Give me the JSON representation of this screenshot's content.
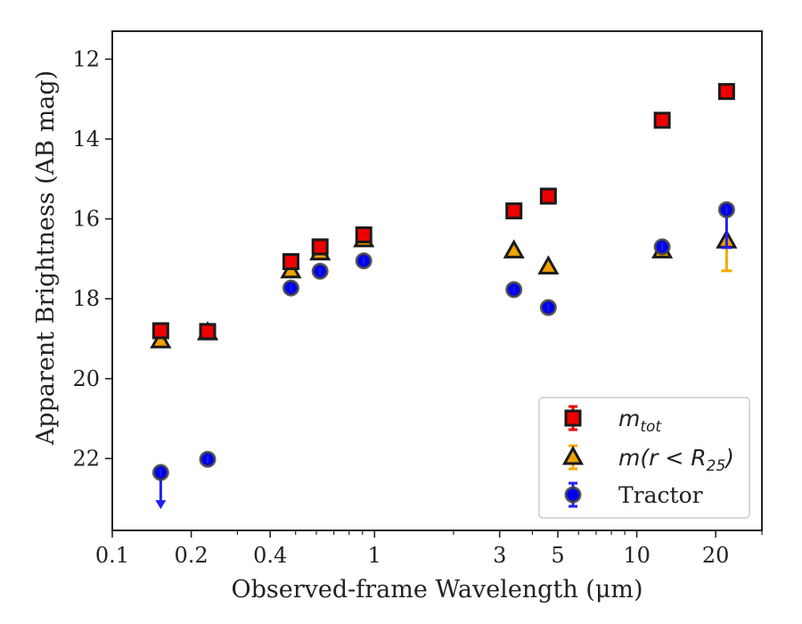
{
  "chart_data": {
    "type": "scatter",
    "xlabel": "Observed-frame Wavelength (μm)",
    "ylabel": "Apparent Brightness (AB mag)",
    "x_scale": "log",
    "xlim": [
      0.1,
      30
    ],
    "ylim": [
      23.8,
      11.3
    ],
    "y_inverted": true,
    "x_ticks": [
      {
        "value": 0.1,
        "label": "0.1"
      },
      {
        "value": 0.2,
        "label": "0.2"
      },
      {
        "value": 0.4,
        "label": "0.4"
      },
      {
        "value": 1,
        "label": "1"
      },
      {
        "value": 3,
        "label": "3"
      },
      {
        "value": 5,
        "label": "5"
      },
      {
        "value": 10,
        "label": "10"
      },
      {
        "value": 20,
        "label": "20"
      }
    ],
    "x_minor_ticks": [
      0.3,
      0.5,
      0.6,
      0.7,
      0.8,
      0.9,
      2,
      4,
      6,
      7,
      8,
      9,
      30
    ],
    "y_ticks": [
      {
        "value": 12,
        "label": "12"
      },
      {
        "value": 14,
        "label": "14"
      },
      {
        "value": 16,
        "label": "16"
      },
      {
        "value": 18,
        "label": "18"
      },
      {
        "value": 20,
        "label": "20"
      },
      {
        "value": 22,
        "label": "22"
      }
    ],
    "grid": false,
    "legend_position": "lower-right",
    "series": [
      {
        "name": "m_tot",
        "legend_label": {
          "italic": "m",
          "subscript": "tot"
        },
        "marker": "square",
        "face_color": "#ee0000",
        "edge_color": "#1a1a1a",
        "error_color": "#ee0000",
        "points": [
          {
            "x": 0.153,
            "y": 18.8
          },
          {
            "x": 0.231,
            "y": 18.82
          },
          {
            "x": 0.48,
            "y": 17.07
          },
          {
            "x": 0.62,
            "y": 16.7
          },
          {
            "x": 0.91,
            "y": 16.4
          },
          {
            "x": 3.4,
            "y": 15.8
          },
          {
            "x": 4.6,
            "y": 15.43
          },
          {
            "x": 12.5,
            "y": 13.53
          },
          {
            "x": 22.0,
            "y": 12.81
          }
        ]
      },
      {
        "name": "m(r < R25)",
        "legend_label": {
          "italic": "m",
          "open": "(",
          "italic2": "r",
          "relation": " < ",
          "italic3": "R",
          "subscript": "25",
          "close": ")"
        },
        "marker": "triangle",
        "face_color": "#f0a000",
        "edge_color": "#1a1a1a",
        "error_color": "#f5a800",
        "points": [
          {
            "x": 0.153,
            "y": 19.05
          },
          {
            "x": 0.231,
            "y": 18.85
          },
          {
            "x": 0.48,
            "y": 17.3
          },
          {
            "x": 0.62,
            "y": 16.85
          },
          {
            "x": 0.91,
            "y": 16.52
          },
          {
            "x": 3.4,
            "y": 16.8
          },
          {
            "x": 4.6,
            "y": 17.2
          },
          {
            "x": 12.5,
            "y": 16.8
          },
          {
            "x": 22.0,
            "y": 16.55,
            "yerr_plus": 0.75
          }
        ]
      },
      {
        "name": "Tractor",
        "legend_label": {
          "text": "Tractor"
        },
        "marker": "circle",
        "face_color": "#0000ee",
        "edge_color": "#444444",
        "error_color": "#2020ee",
        "points": [
          {
            "x": 0.153,
            "y": 22.35,
            "upper_limit": true,
            "arrow_to": 23.2
          },
          {
            "x": 0.231,
            "y": 22.02
          },
          {
            "x": 0.48,
            "y": 17.73
          },
          {
            "x": 0.62,
            "y": 17.31
          },
          {
            "x": 0.91,
            "y": 17.05
          },
          {
            "x": 3.4,
            "y": 17.77
          },
          {
            "x": 4.6,
            "y": 18.22
          },
          {
            "x": 12.5,
            "y": 16.7
          },
          {
            "x": 22.0,
            "y": 15.77,
            "yerr_plus": 0.95
          }
        ]
      }
    ]
  }
}
